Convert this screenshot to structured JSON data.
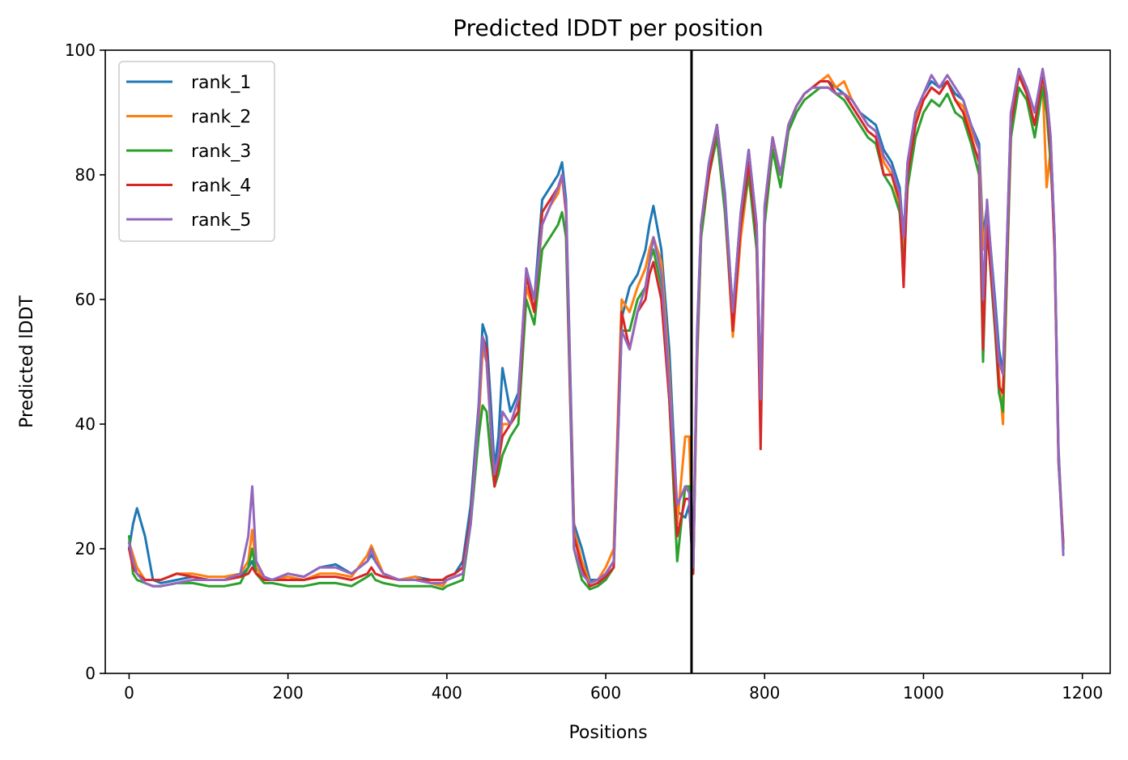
{
  "chart_data": {
    "type": "line",
    "title": "Predicted lDDT per position",
    "xlabel": "Positions",
    "ylabel": "Predicted lDDT",
    "xlim": [
      -30,
      1235
    ],
    "ylim": [
      0,
      100
    ],
    "xticks": [
      0,
      200,
      400,
      600,
      800,
      1000,
      1200
    ],
    "yticks": [
      0,
      20,
      40,
      60,
      80,
      100
    ],
    "grid": false,
    "legend_position": "top-left",
    "vline_x": 708,
    "x": [
      0,
      5,
      10,
      20,
      30,
      40,
      60,
      80,
      100,
      120,
      140,
      150,
      155,
      160,
      170,
      180,
      200,
      220,
      240,
      260,
      280,
      300,
      305,
      310,
      320,
      340,
      360,
      380,
      395,
      400,
      410,
      420,
      430,
      440,
      445,
      450,
      455,
      460,
      465,
      470,
      480,
      490,
      500,
      510,
      520,
      530,
      540,
      545,
      550,
      555,
      560,
      570,
      580,
      590,
      600,
      610,
      620,
      630,
      640,
      650,
      655,
      660,
      670,
      680,
      690,
      700,
      705,
      710,
      715,
      720,
      730,
      740,
      750,
      760,
      770,
      780,
      790,
      795,
      800,
      810,
      820,
      830,
      840,
      850,
      860,
      870,
      880,
      890,
      900,
      910,
      920,
      930,
      940,
      950,
      960,
      970,
      975,
      980,
      990,
      1000,
      1010,
      1020,
      1030,
      1040,
      1050,
      1060,
      1070,
      1075,
      1080,
      1090,
      1095,
      1100,
      1110,
      1120,
      1130,
      1140,
      1150,
      1155,
      1160,
      1165,
      1170,
      1176
    ],
    "series": [
      {
        "name": "rank_1",
        "color": "#1f77b4",
        "values": [
          20,
          24,
          26.5,
          22,
          15,
          14.5,
          15,
          15.5,
          15,
          15,
          15.5,
          17,
          18,
          16,
          15.5,
          15,
          16,
          15.5,
          17,
          17.5,
          16,
          18,
          19,
          18,
          16,
          15,
          15.5,
          15,
          15,
          15.5,
          16,
          18,
          27,
          43,
          56,
          54,
          44,
          33,
          38,
          49,
          42,
          45,
          64,
          60,
          76,
          78,
          80,
          82,
          76,
          50,
          24,
          20,
          15,
          15,
          16,
          18,
          57,
          62,
          64,
          68,
          72,
          75,
          68,
          52,
          26,
          25,
          27,
          16,
          55,
          72,
          82,
          88,
          77,
          58,
          74,
          84,
          72,
          45,
          75,
          86,
          80,
          88,
          91,
          93,
          94,
          95,
          95,
          94,
          93,
          92,
          90,
          89,
          88,
          84,
          82,
          78,
          70,
          82,
          90,
          93,
          95,
          94,
          95,
          93,
          92,
          88,
          85,
          70,
          75,
          60,
          52,
          48,
          90,
          96,
          94,
          90,
          96,
          93,
          86,
          70,
          36,
          20
        ]
      },
      {
        "name": "rank_2",
        "color": "#ff7f0e",
        "values": [
          21,
          19,
          17,
          15,
          15,
          15,
          16,
          16,
          15.5,
          15.5,
          16,
          18,
          23,
          17,
          15,
          15,
          15.5,
          15,
          16,
          16,
          15.5,
          19,
          20.5,
          19,
          16,
          15,
          15.5,
          14.5,
          14,
          15,
          15.5,
          16,
          25,
          40,
          52,
          50,
          40,
          30,
          33,
          40,
          40,
          42,
          62,
          58,
          72,
          75,
          77,
          80,
          74,
          48,
          23,
          18,
          14.5,
          15,
          17,
          20,
          60,
          58,
          62,
          65,
          68,
          70,
          66,
          48,
          24,
          38,
          38,
          17,
          52,
          70,
          80,
          86,
          75,
          54,
          70,
          80,
          70,
          44,
          74,
          85,
          80,
          88,
          91,
          93,
          94,
          95,
          96,
          94,
          95,
          92,
          90,
          88,
          87,
          82,
          80,
          75,
          68,
          80,
          89,
          92,
          94,
          93,
          95,
          92,
          91,
          87,
          84,
          68,
          74,
          58,
          48,
          40,
          88,
          96,
          93,
          88,
          95,
          78,
          84,
          68,
          35,
          20
        ]
      },
      {
        "name": "rank_3",
        "color": "#2ca02c",
        "values": [
          22,
          16,
          15,
          14.5,
          14,
          14,
          14.5,
          14.5,
          14,
          14,
          14.5,
          17,
          20,
          16,
          14.5,
          14.5,
          14,
          14,
          14.5,
          14.5,
          14,
          15.5,
          16,
          15,
          14.5,
          14,
          14,
          14,
          13.5,
          14,
          14.5,
          15,
          24,
          38,
          43,
          42,
          35,
          30,
          32,
          35,
          38,
          40,
          60,
          56,
          68,
          70,
          72,
          74,
          70,
          45,
          20,
          15,
          13.5,
          14,
          15,
          17,
          55,
          55,
          60,
          62,
          66,
          68,
          62,
          44,
          18,
          30,
          30,
          16,
          50,
          70,
          80,
          86,
          74,
          56,
          72,
          80,
          68,
          42,
          72,
          84,
          78,
          87,
          90,
          92,
          93,
          94,
          94,
          93,
          92,
          90,
          88,
          86,
          85,
          80,
          78,
          74,
          65,
          78,
          86,
          90,
          92,
          91,
          93,
          90,
          89,
          85,
          80,
          50,
          72,
          55,
          45,
          42,
          86,
          94,
          92,
          86,
          94,
          90,
          82,
          70,
          34,
          20
        ]
      },
      {
        "name": "rank_4",
        "color": "#d62728",
        "values": [
          20,
          17,
          16,
          15,
          15,
          15,
          16,
          15.5,
          15,
          15,
          15.5,
          16,
          17,
          16,
          15,
          15,
          15,
          15,
          15.5,
          15.5,
          15,
          16,
          17,
          16,
          15.5,
          15,
          15,
          15,
          15,
          15.5,
          16,
          17,
          25,
          42,
          54,
          52,
          40,
          30,
          34,
          38,
          40,
          42,
          64,
          58,
          74,
          76,
          78,
          80,
          74,
          46,
          22,
          17,
          14,
          14.5,
          15.5,
          17,
          58,
          52,
          58,
          60,
          64,
          66,
          60,
          44,
          22,
          28,
          28,
          16,
          52,
          72,
          80,
          88,
          76,
          55,
          72,
          82,
          70,
          36,
          74,
          86,
          80,
          88,
          91,
          93,
          94,
          95,
          95,
          93,
          93,
          91,
          89,
          87,
          86,
          80,
          80,
          76,
          62,
          80,
          88,
          92,
          94,
          93,
          95,
          92,
          90,
          86,
          82,
          52,
          72,
          56,
          46,
          45,
          88,
          96,
          93,
          88,
          96,
          92,
          84,
          68,
          34,
          21
        ]
      },
      {
        "name": "rank_5",
        "color": "#9467bd",
        "values": [
          21,
          18,
          16,
          14.5,
          14,
          14,
          14.5,
          15,
          15,
          15,
          16,
          22,
          30,
          18,
          15.5,
          15,
          16,
          15.5,
          17,
          17,
          16,
          18,
          20,
          18,
          16,
          15,
          15,
          14.5,
          14.5,
          15,
          15.5,
          16,
          24,
          42,
          54,
          50,
          40,
          32,
          35,
          42,
          40,
          44,
          65,
          60,
          72,
          75,
          78,
          80,
          75,
          48,
          20,
          16,
          14.5,
          15,
          16,
          18,
          55,
          52,
          58,
          62,
          66,
          70,
          64,
          46,
          27,
          30,
          29,
          17,
          54,
          72,
          82,
          88,
          76,
          58,
          74,
          84,
          72,
          44,
          75,
          86,
          80,
          88,
          91,
          93,
          94,
          94,
          94,
          93,
          93,
          92,
          90,
          88,
          87,
          83,
          81,
          77,
          70,
          82,
          90,
          93,
          96,
          94,
          96,
          94,
          92,
          88,
          84,
          60,
          76,
          58,
          50,
          48,
          90,
          97,
          94,
          90,
          97,
          93,
          86,
          70,
          35,
          19
        ]
      }
    ]
  }
}
